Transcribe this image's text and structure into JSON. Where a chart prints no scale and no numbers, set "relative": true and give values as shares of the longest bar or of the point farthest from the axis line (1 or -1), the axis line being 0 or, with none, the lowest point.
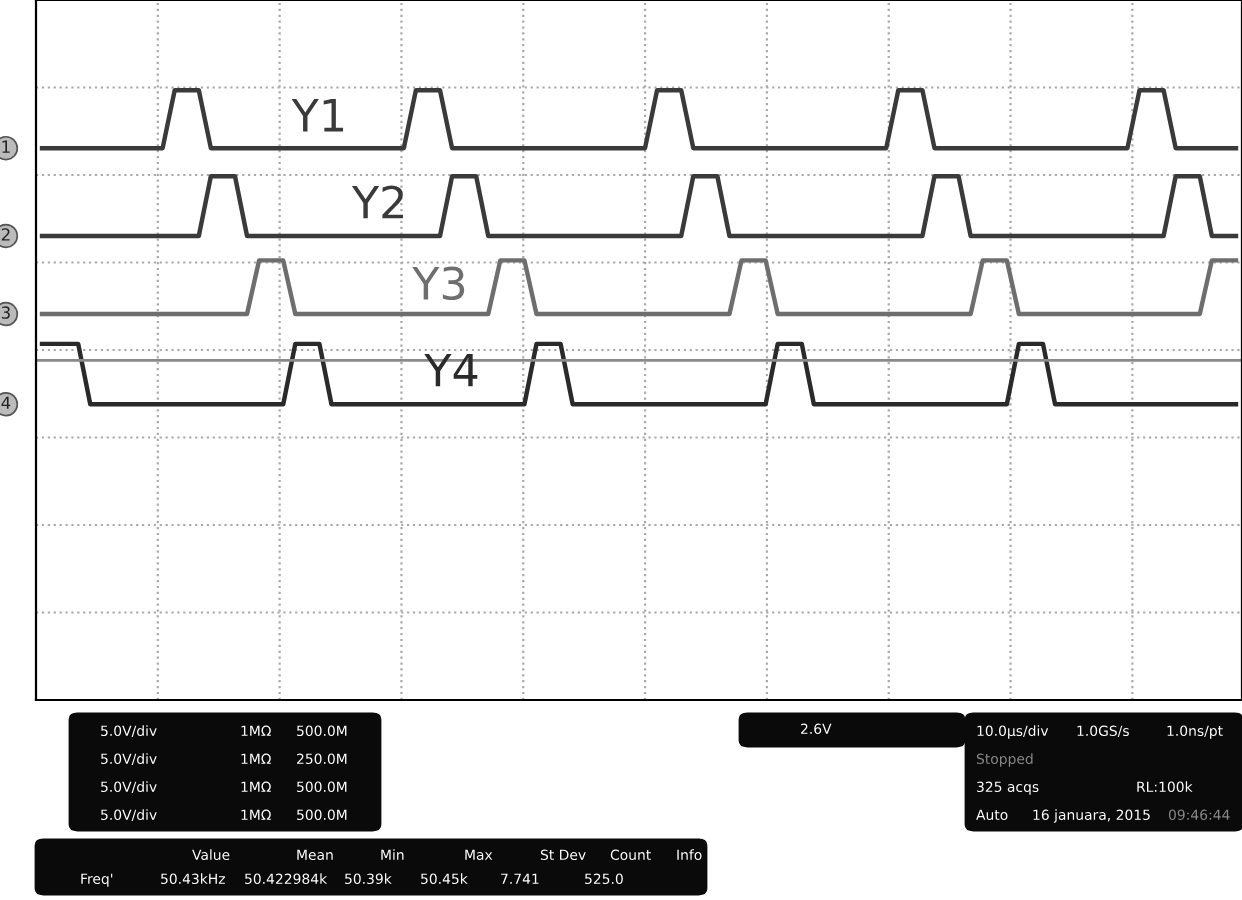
{
  "chart_data": {
    "type": "line",
    "relative": true,
    "categories": [
      null,
      null,
      null,
      null,
      null,
      null,
      null,
      null,
      null,
      null,
      null,
      null,
      null,
      null,
      null,
      null,
      null,
      null,
      null,
      null,
      null,
      null,
      null,
      null,
      null,
      null,
      null,
      null,
      null,
      null,
      null,
      null,
      null,
      null,
      null,
      null,
      null,
      null,
      null,
      null,
      null,
      null,
      null,
      null,
      null,
      null,
      null,
      null,
      null,
      null,
      null,
      null,
      null,
      null,
      null,
      null,
      null,
      null,
      null,
      null,
      null,
      null,
      null,
      null,
      null,
      null,
      null,
      null,
      null,
      null,
      null,
      null,
      null,
      null,
      null,
      null,
      null,
      null,
      null,
      null,
      null,
      null,
      null,
      null,
      null,
      null,
      null,
      null,
      null,
      null,
      null,
      null,
      null,
      null,
      null,
      null,
      null,
      null,
      null,
      null
    ],
    "grid": true,
    "legend": false,
    "line_style": "solid",
    "marker": "none",
    "series": [
      {
        "name": "Y1",
        "color": "#3a3a3a",
        "values": [
          0.905,
          0.905,
          0.905,
          0.905,
          0.905,
          0.905,
          0.905,
          0.905,
          0.905,
          0.905,
          0.905,
          1.0,
          1.0,
          1.0,
          0.905,
          0.905,
          0.905,
          0.905,
          0.905,
          0.905,
          0.905,
          0.905,
          0.905,
          0.905,
          0.905,
          0.905,
          0.905,
          0.905,
          0.905,
          0.905,
          0.905,
          1.0,
          1.0,
          1.0,
          0.905,
          0.905,
          0.905,
          0.905,
          0.905,
          0.905,
          0.905,
          0.905,
          0.905,
          0.905,
          0.905,
          0.905,
          0.905,
          0.905,
          0.905,
          0.905,
          0.905,
          1.0,
          1.0,
          1.0,
          0.905,
          0.905,
          0.905,
          0.905,
          0.905,
          0.905,
          0.905,
          0.905,
          0.905,
          0.905,
          0.905,
          0.905,
          0.905,
          0.905,
          0.905,
          0.905,
          0.905,
          1.0,
          1.0,
          1.0,
          0.905,
          0.905,
          0.905,
          0.905,
          0.905,
          0.905,
          0.905,
          0.905,
          0.905,
          0.905,
          0.905,
          0.905,
          0.905,
          0.905,
          0.905,
          0.905,
          0.905,
          1.0,
          1.0,
          1.0,
          0.905,
          0.905,
          0.905,
          0.905,
          0.905,
          0.905
        ]
      },
      {
        "name": "Y2",
        "color": "#3a3a3a",
        "values": [
          0.761,
          0.761,
          0.761,
          0.761,
          0.761,
          0.761,
          0.761,
          0.761,
          0.761,
          0.761,
          0.761,
          0.761,
          0.761,
          0.761,
          0.859,
          0.859,
          0.859,
          0.761,
          0.761,
          0.761,
          0.761,
          0.761,
          0.761,
          0.761,
          0.761,
          0.761,
          0.761,
          0.761,
          0.761,
          0.761,
          0.761,
          0.761,
          0.761,
          0.761,
          0.859,
          0.859,
          0.859,
          0.761,
          0.761,
          0.761,
          0.761,
          0.761,
          0.761,
          0.761,
          0.761,
          0.761,
          0.761,
          0.761,
          0.761,
          0.761,
          0.761,
          0.761,
          0.761,
          0.761,
          0.859,
          0.859,
          0.859,
          0.761,
          0.761,
          0.761,
          0.761,
          0.761,
          0.761,
          0.761,
          0.761,
          0.761,
          0.761,
          0.761,
          0.761,
          0.761,
          0.761,
          0.761,
          0.761,
          0.761,
          0.859,
          0.859,
          0.859,
          0.761,
          0.761,
          0.761,
          0.761,
          0.761,
          0.761,
          0.761,
          0.761,
          0.761,
          0.761,
          0.761,
          0.761,
          0.761,
          0.761,
          0.761,
          0.761,
          0.761,
          0.859,
          0.859,
          0.859,
          0.761,
          0.761,
          0.761
        ]
      },
      {
        "name": "Y3",
        "color": "#6e6e6e",
        "values": [
          0.633,
          0.633,
          0.633,
          0.633,
          0.633,
          0.633,
          0.633,
          0.633,
          0.633,
          0.633,
          0.633,
          0.633,
          0.633,
          0.633,
          0.633,
          0.633,
          0.633,
          0.633,
          0.721,
          0.721,
          0.721,
          0.633,
          0.633,
          0.633,
          0.633,
          0.633,
          0.633,
          0.633,
          0.633,
          0.633,
          0.633,
          0.633,
          0.633,
          0.633,
          0.633,
          0.633,
          0.633,
          0.633,
          0.721,
          0.721,
          0.721,
          0.633,
          0.633,
          0.633,
          0.633,
          0.633,
          0.633,
          0.633,
          0.633,
          0.633,
          0.633,
          0.633,
          0.633,
          0.633,
          0.633,
          0.633,
          0.633,
          0.633,
          0.721,
          0.721,
          0.721,
          0.633,
          0.633,
          0.633,
          0.633,
          0.633,
          0.633,
          0.633,
          0.633,
          0.633,
          0.633,
          0.633,
          0.633,
          0.633,
          0.633,
          0.633,
          0.633,
          0.633,
          0.721,
          0.721,
          0.721,
          0.633,
          0.633,
          0.633,
          0.633,
          0.633,
          0.633,
          0.633,
          0.633,
          0.633,
          0.633,
          0.633,
          0.633,
          0.633,
          0.633,
          0.633,
          0.633,
          0.721,
          0.721,
          0.721
        ]
      },
      {
        "name": "Y4",
        "color": "#2a2a2a",
        "values": [
          0.584,
          0.584,
          0.584,
          0.584,
          0.485,
          0.485,
          0.485,
          0.485,
          0.485,
          0.485,
          0.485,
          0.485,
          0.485,
          0.485,
          0.485,
          0.485,
          0.485,
          0.485,
          0.485,
          0.485,
          0.485,
          0.584,
          0.584,
          0.584,
          0.485,
          0.485,
          0.485,
          0.485,
          0.485,
          0.485,
          0.485,
          0.485,
          0.485,
          0.485,
          0.485,
          0.485,
          0.485,
          0.485,
          0.485,
          0.485,
          0.485,
          0.584,
          0.584,
          0.584,
          0.485,
          0.485,
          0.485,
          0.485,
          0.485,
          0.485,
          0.485,
          0.485,
          0.485,
          0.485,
          0.485,
          0.485,
          0.485,
          0.485,
          0.485,
          0.485,
          0.485,
          0.584,
          0.584,
          0.584,
          0.485,
          0.485,
          0.485,
          0.485,
          0.485,
          0.485,
          0.485,
          0.485,
          0.485,
          0.485,
          0.485,
          0.485,
          0.485,
          0.485,
          0.485,
          0.485,
          0.485,
          0.584,
          0.584,
          0.584,
          0.485,
          0.485,
          0.485,
          0.485,
          0.485,
          0.485,
          0.485,
          0.485,
          0.485,
          0.485,
          0.485,
          0.485,
          0.485,
          0.485,
          0.485,
          0.485
        ]
      }
    ],
    "ref_lines": [
      {
        "axis": "y",
        "value": 0.557,
        "color": "#8a8a8a"
      }
    ],
    "annotations": [
      "1",
      "2",
      "3",
      "4",
      "5.0V/div",
      "5.0V/div",
      "5.0V/div",
      "5.0V/div",
      "1MΩ",
      "1MΩ",
      "1MΩ",
      "1MΩ",
      "500.0M",
      "250.0M",
      "500.0M",
      "500.0M",
      "Value",
      "Mean",
      "Min",
      "Max",
      "St Dev",
      "Count",
      "Info",
      "Freq'",
      "50.43kHz",
      "50.422984k",
      "50.39k",
      "50.45k",
      "7.741",
      "525.0",
      "2.6V",
      "10.0μs/div",
      "1.0GS/s",
      "1.0ns/pt",
      "Stopped",
      "325 acqs",
      "RL:100k",
      "Auto",
      "16 januara, 2015",
      "09:46:44"
    ]
  }
}
